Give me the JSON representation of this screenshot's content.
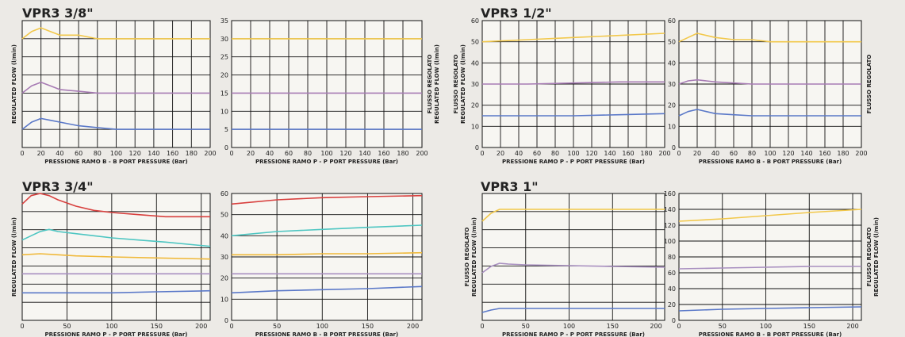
{
  "titles": {
    "t38": "VPR3 3/8\"",
    "t12": "VPR3 1/2\"",
    "t34": "VPR3 3/4\"",
    "t1": "VPR3 1\""
  },
  "colors": {
    "yellow": "#f2c84b",
    "purple": "#a77bb4",
    "blue": "#5a78c8",
    "red": "#d8403e",
    "cyan": "#4ec6c2",
    "orange": "#f0b93a",
    "lightpurple": "#a88fc0"
  },
  "chart_data": [
    {
      "id": "c1",
      "type": "line",
      "xlabel": "PRESSIONE RAMO B - B PORT PRESSURE (Bar)",
      "ylabel": [
        "REGULATED FLOW (l/min)"
      ],
      "ylabel_side": "left",
      "show_y_ticks": false,
      "xlim": [
        0,
        200
      ],
      "ylim": [
        0,
        35
      ],
      "x_ticks": [
        0,
        20,
        40,
        60,
        80,
        100,
        120,
        140,
        160,
        180,
        200
      ],
      "y_ticks": [],
      "series": [
        {
          "color": "yellow",
          "x": [
            0,
            10,
            20,
            30,
            40,
            60,
            80,
            100,
            140,
            200
          ],
          "y": [
            30,
            32,
            33,
            32,
            31,
            31,
            30,
            30,
            30,
            30
          ]
        },
        {
          "color": "purple",
          "x": [
            0,
            10,
            20,
            30,
            40,
            60,
            80,
            100,
            140,
            200
          ],
          "y": [
            15,
            17,
            18,
            17,
            16,
            15.5,
            15,
            15,
            15,
            15
          ]
        },
        {
          "color": "blue",
          "x": [
            0,
            10,
            20,
            30,
            40,
            60,
            80,
            100,
            140,
            200
          ],
          "y": [
            5,
            7,
            8,
            7.5,
            7,
            6,
            5.5,
            5,
            5,
            5
          ]
        }
      ]
    },
    {
      "id": "c2",
      "type": "line",
      "xlabel": "PRESSIONE RAMO P - P PORT PRESSURE (Bar)",
      "ylabel": [
        "FLUSSO REGOLATO",
        "REGULATED FLOW (l/min)"
      ],
      "ylabel_side": "right",
      "show_y_ticks": true,
      "xlim": [
        0,
        200
      ],
      "ylim": [
        0,
        35
      ],
      "x_ticks": [
        0,
        20,
        40,
        60,
        80,
        100,
        120,
        140,
        160,
        180,
        200
      ],
      "y_ticks": [
        0,
        5,
        10,
        15,
        20,
        25,
        30,
        35
      ],
      "series": [
        {
          "color": "yellow",
          "x": [
            0,
            50,
            100,
            150,
            200
          ],
          "y": [
            30,
            30,
            30,
            30,
            30
          ]
        },
        {
          "color": "purple",
          "x": [
            0,
            50,
            100,
            150,
            200
          ],
          "y": [
            15,
            15,
            15,
            15,
            15
          ]
        },
        {
          "color": "blue",
          "x": [
            0,
            50,
            100,
            150,
            200
          ],
          "y": [
            5,
            5,
            5,
            5,
            5
          ]
        }
      ]
    },
    {
      "id": "c3",
      "type": "line",
      "xlabel": "PRESSIONE RAMO P - P PORT PRESSURE (Bar)",
      "ylabel": [
        "FLUSSO REGOLATO",
        "REGULATED FLOW (l/min)"
      ],
      "ylabel_side": "left",
      "show_y_ticks": true,
      "xlim": [
        0,
        200
      ],
      "ylim": [
        0,
        60
      ],
      "x_ticks": [
        0,
        20,
        40,
        60,
        80,
        100,
        120,
        140,
        160,
        180,
        200
      ],
      "y_ticks": [
        0,
        10,
        20,
        30,
        40,
        50,
        60
      ],
      "series": [
        {
          "color": "yellow",
          "x": [
            0,
            50,
            100,
            150,
            200
          ],
          "y": [
            50,
            51,
            52,
            53,
            54
          ]
        },
        {
          "color": "purple",
          "x": [
            0,
            50,
            100,
            150,
            200
          ],
          "y": [
            30,
            30,
            30.5,
            31,
            31
          ]
        },
        {
          "color": "blue",
          "x": [
            0,
            50,
            100,
            150,
            200
          ],
          "y": [
            15,
            15,
            15,
            15.5,
            16
          ]
        }
      ]
    },
    {
      "id": "c4",
      "type": "line",
      "xlabel": "PRESSIONE RAMO B - B PORT PRESSURE (Bar)",
      "ylabel": [
        "FLUSSO REGOLATO"
      ],
      "ylabel_side": "right",
      "show_y_ticks": true,
      "xlim": [
        0,
        200
      ],
      "ylim": [
        0,
        60
      ],
      "x_ticks": [
        0,
        20,
        40,
        60,
        80,
        100,
        120,
        140,
        160,
        180,
        200
      ],
      "y_ticks": [
        0,
        10,
        20,
        30,
        40,
        50,
        60
      ],
      "series": [
        {
          "color": "yellow",
          "x": [
            0,
            10,
            20,
            30,
            40,
            60,
            80,
            100,
            140,
            200
          ],
          "y": [
            50,
            52,
            54,
            53,
            52,
            51,
            51,
            50,
            50,
            50
          ]
        },
        {
          "color": "purple",
          "x": [
            0,
            10,
            20,
            30,
            40,
            60,
            80,
            100,
            140,
            200
          ],
          "y": [
            30,
            31.5,
            32,
            31.5,
            31,
            30.5,
            30,
            30,
            30,
            30
          ]
        },
        {
          "color": "blue",
          "x": [
            0,
            10,
            20,
            30,
            40,
            60,
            80,
            100,
            140,
            200
          ],
          "y": [
            15,
            17,
            18,
            17,
            16,
            15.5,
            15,
            15,
            15,
            15
          ]
        }
      ]
    },
    {
      "id": "c5",
      "type": "line",
      "xlabel": "PRESSIONE RAMO P - P PORT PRESSURE (Bar)",
      "ylabel": [
        "REGULATED FLOW (l/min)"
      ],
      "ylabel_side": "left",
      "show_y_ticks": false,
      "xlim": [
        0,
        210
      ],
      "ylim": [
        0,
        60
      ],
      "x_ticks": [
        0,
        50,
        100,
        150,
        200
      ],
      "y_ticks": [],
      "series": [
        {
          "color": "red",
          "x": [
            0,
            10,
            20,
            30,
            40,
            60,
            80,
            100,
            130,
            160,
            210
          ],
          "y": [
            55,
            59,
            60,
            59,
            57,
            54,
            52,
            51,
            50,
            49,
            49
          ]
        },
        {
          "color": "cyan",
          "x": [
            0,
            10,
            20,
            30,
            40,
            60,
            80,
            100,
            130,
            160,
            210
          ],
          "y": [
            38,
            40,
            42,
            43,
            42,
            41,
            40,
            39,
            38,
            37,
            35
          ]
        },
        {
          "color": "orange",
          "x": [
            0,
            20,
            40,
            60,
            100,
            150,
            210
          ],
          "y": [
            31,
            31.5,
            31,
            30.5,
            30,
            29.5,
            29
          ]
        },
        {
          "color": "lightpurple",
          "x": [
            0,
            50,
            100,
            150,
            210
          ],
          "y": [
            22,
            22,
            22,
            22,
            22
          ]
        },
        {
          "color": "blue",
          "x": [
            0,
            50,
            100,
            150,
            210
          ],
          "y": [
            13,
            13,
            13,
            13.5,
            14
          ]
        }
      ]
    },
    {
      "id": "c6",
      "type": "line",
      "xlabel": "PRESSIONE RAMO B - B PORT PRESSURE (Bar)",
      "ylabel": [],
      "ylabel_side": "left",
      "show_y_ticks": true,
      "xlim": [
        0,
        210
      ],
      "ylim": [
        0,
        60
      ],
      "x_ticks": [
        0,
        50,
        100,
        150,
        200
      ],
      "y_ticks": [
        0,
        10,
        20,
        30,
        40,
        50,
        60
      ],
      "series": [
        {
          "color": "red",
          "x": [
            0,
            50,
            100,
            150,
            210
          ],
          "y": [
            55,
            57,
            58,
            58.5,
            59
          ]
        },
        {
          "color": "cyan",
          "x": [
            0,
            50,
            100,
            150,
            210
          ],
          "y": [
            40,
            42,
            43,
            44,
            45
          ]
        },
        {
          "color": "orange",
          "x": [
            0,
            50,
            100,
            150,
            210
          ],
          "y": [
            31,
            31,
            31.5,
            31.5,
            32
          ]
        },
        {
          "color": "lightpurple",
          "x": [
            0,
            50,
            100,
            150,
            210
          ],
          "y": [
            22,
            22,
            22,
            22,
            22
          ]
        },
        {
          "color": "blue",
          "x": [
            0,
            50,
            100,
            150,
            210
          ],
          "y": [
            13,
            14,
            14.5,
            15,
            16
          ]
        }
      ]
    },
    {
      "id": "c7",
      "type": "line",
      "xlabel": "PRESSIONE RAMO P - P PORT PRESSURE (Bar)",
      "ylabel": [
        "FLUSSO REGOLATO",
        "REGULATED FLOW (l/min)"
      ],
      "ylabel_side": "left",
      "show_y_ticks": false,
      "xlim": [
        0,
        210
      ],
      "ylim": [
        0,
        160
      ],
      "x_ticks": [
        0,
        50,
        100,
        150,
        200
      ],
      "y_ticks": [],
      "series": [
        {
          "color": "yellow",
          "x": [
            0,
            10,
            20,
            30,
            50,
            100,
            150,
            210
          ],
          "y": [
            125,
            135,
            140,
            140,
            140,
            140,
            140,
            140
          ]
        },
        {
          "color": "lightpurple",
          "x": [
            0,
            10,
            20,
            30,
            50,
            100,
            150,
            210
          ],
          "y": [
            60,
            68,
            72,
            71,
            70,
            69,
            68,
            67
          ]
        },
        {
          "color": "blue",
          "x": [
            0,
            10,
            20,
            50,
            100,
            150,
            210
          ],
          "y": [
            10,
            13,
            15,
            15,
            15,
            15,
            15
          ]
        }
      ]
    },
    {
      "id": "c8",
      "type": "line",
      "xlabel": "PRESSIONE RAMO B - B PORT PRESSURE (Bar)",
      "ylabel": [
        "FLUSSO REGOLATO",
        "REGULATED FLOW (l/min)"
      ],
      "ylabel_side": "right",
      "show_y_ticks": true,
      "xlim": [
        0,
        210
      ],
      "ylim": [
        0,
        160
      ],
      "x_ticks": [
        0,
        50,
        100,
        150,
        200
      ],
      "y_ticks": [
        0,
        20,
        40,
        60,
        80,
        100,
        120,
        140,
        160
      ],
      "series": [
        {
          "color": "yellow",
          "x": [
            0,
            50,
            100,
            150,
            210
          ],
          "y": [
            125,
            128,
            132,
            136,
            140
          ]
        },
        {
          "color": "lightpurple",
          "x": [
            0,
            50,
            100,
            150,
            210
          ],
          "y": [
            65,
            66,
            67,
            68,
            68
          ]
        },
        {
          "color": "blue",
          "x": [
            0,
            50,
            100,
            150,
            210
          ],
          "y": [
            12,
            14,
            15,
            16,
            17
          ]
        }
      ]
    }
  ]
}
